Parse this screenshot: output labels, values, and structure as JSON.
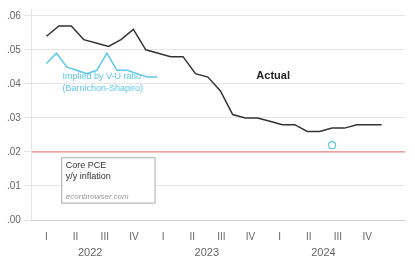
{
  "chart_data": {
    "type": "line",
    "series": [
      {
        "color": "#333333",
        "x": [
          0,
          0.4259,
          0.8519,
          1.2778,
          1.7037,
          2.1296,
          2.5556,
          2.9815,
          3.4074,
          3.8333,
          4.2593,
          4.6852,
          5.1111,
          5.537,
          5.963,
          6.3889,
          6.8148,
          7.2407,
          7.6667,
          8.0926,
          8.5185,
          8.9444,
          9.3704,
          9.7963,
          10.2222,
          10.6481,
          11.0741,
          11.5
        ],
        "values": [
          0.054,
          0.057,
          0.057,
          0.053,
          0.052,
          0.051,
          0.053,
          0.056,
          0.05,
          0.049,
          0.048,
          0.048,
          0.043,
          0.042,
          0.038,
          0.031,
          0.03,
          0.03,
          0.029,
          0.028,
          0.028,
          0.026,
          0.026,
          0.027,
          0.027,
          0.028,
          0.028,
          0.028
        ]
      },
      {
        "color": "#5bc8e8",
        "x": [
          0,
          0.3455,
          0.6909,
          1.0364,
          1.3818,
          1.7273,
          2.0727,
          2.4182,
          2.7636,
          3.1091,
          3.4545,
          3.8
        ],
        "values": [
          0.046,
          0.049,
          0.045,
          0.044,
          0.043,
          0.044,
          0.049,
          0.044,
          0.044,
          0.043,
          0.042,
          0.042
        ]
      }
    ],
    "hlines": [
      {
        "y": 0.02,
        "color": "#e87070"
      }
    ],
    "points": [
      {
        "x": 9.8,
        "y": 0.022,
        "color": "#5bc8e8",
        "marker": "open_circle"
      }
    ],
    "annotations": [
      {
        "text": "Actual",
        "x": 7.2,
        "y": 0.0415,
        "color": "#222222"
      },
      {
        "text": "Implied by V-U ratio\n(Barnichon-Shapiro)",
        "x": 0.55,
        "y": 0.038,
        "color": "#5bc8e8"
      }
    ],
    "legend_box": {
      "text": "Core PCE\ny/y inflation",
      "note": "econbrowser.com"
    },
    "xlim": [
      -0.5,
      12.3
    ],
    "xticks": [
      {
        "value": 0,
        "label": "I"
      },
      {
        "value": 1,
        "label": "II"
      },
      {
        "value": 2,
        "label": "III"
      },
      {
        "value": 3,
        "label": "IV"
      },
      {
        "value": 4,
        "label": "I"
      },
      {
        "value": 5,
        "label": "II"
      },
      {
        "value": 6,
        "label": "III"
      },
      {
        "value": 7,
        "label": "IV"
      },
      {
        "value": 8,
        "label": "I"
      },
      {
        "value": 9,
        "label": "II"
      },
      {
        "value": 10,
        "label": "III"
      },
      {
        "value": 11,
        "label": "IV"
      }
    ],
    "x_group_labels": [
      {
        "value": 1.5,
        "label": "2022"
      },
      {
        "value": 5.5,
        "label": "2023"
      },
      {
        "value": 9.5,
        "label": "2024"
      }
    ],
    "ylim": [
      0.0,
      0.062
    ],
    "yticks": [
      {
        "value": 0.0,
        "label": ".00"
      },
      {
        "value": 0.01,
        "label": ".01"
      },
      {
        "value": 0.02,
        "label": ".02"
      },
      {
        "value": 0.03,
        "label": ".03"
      },
      {
        "value": 0.04,
        "label": ".04"
      },
      {
        "value": 0.05,
        "label": ".05"
      },
      {
        "value": 0.06,
        "label": ".06"
      }
    ],
    "grid": "y"
  }
}
